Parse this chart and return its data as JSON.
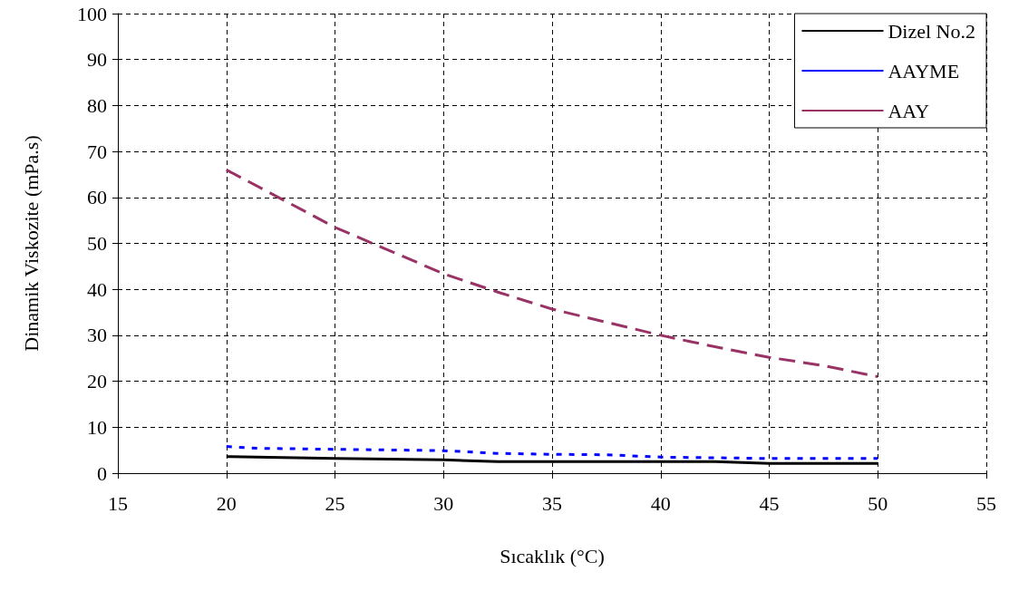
{
  "chart_data": {
    "type": "line",
    "xlabel": "Sıcaklık (°C)",
    "ylabel": "Dinamik Viskozite (mPa.s)",
    "xlim": [
      15,
      55
    ],
    "xticks": [
      15,
      20,
      25,
      30,
      35,
      40,
      45,
      50,
      55
    ],
    "ylim": [
      0,
      100
    ],
    "yticks": [
      0,
      10,
      20,
      30,
      40,
      50,
      60,
      70,
      80,
      90,
      100
    ],
    "grid": true,
    "legend": "top right",
    "marker": "none",
    "series": [
      {
        "name": "Dizel No.2",
        "color": "#000000",
        "line_style": "solid",
        "x": [
          20,
          25,
          30,
          32.5,
          42.5,
          45,
          50
        ],
        "values": [
          3.6,
          3.2,
          2.9,
          2.5,
          2.5,
          2.1,
          2.1
        ]
      },
      {
        "name": "AAYME",
        "color": "#0000ff",
        "line_style": "dotted",
        "x": [
          20,
          21.5,
          30,
          32.5,
          35,
          37.5,
          40,
          45,
          50
        ],
        "values": [
          5.8,
          5.4,
          4.9,
          4.3,
          4.1,
          4.0,
          3.5,
          3.2,
          3.2
        ]
      },
      {
        "name": "AAY",
        "color": "#993366",
        "line_style": "dashed",
        "x": [
          20,
          25,
          30,
          32.5,
          35,
          40,
          42.5,
          45,
          47.5,
          50
        ],
        "values": [
          66,
          53.5,
          43.4,
          39.4,
          35.7,
          30,
          27.5,
          25.2,
          23.4,
          21
        ]
      }
    ]
  }
}
